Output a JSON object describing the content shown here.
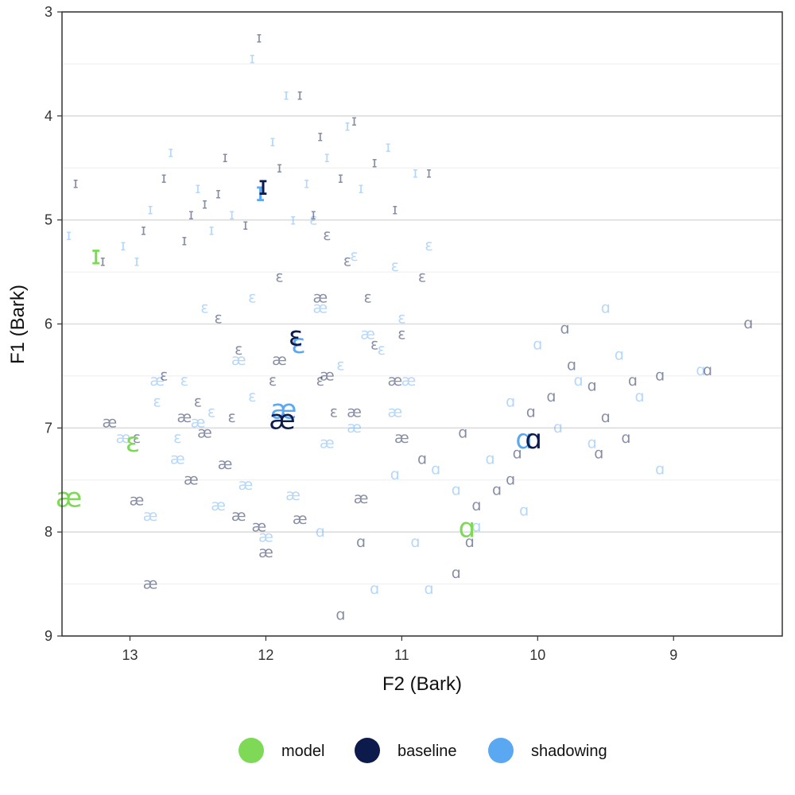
{
  "chart_data": {
    "type": "scatter",
    "xlabel": "F2 (Bark)",
    "ylabel": "F1 (Bark)",
    "xlim": [
      13.5,
      8.2
    ],
    "ylim": [
      3,
      9
    ],
    "x_reversed": true,
    "y_reversed": true,
    "x_ticks": [
      13,
      12,
      11,
      10,
      9
    ],
    "y_ticks": [
      3,
      4,
      5,
      6,
      7,
      8,
      9
    ],
    "grid": true,
    "legend_position": "bottom",
    "legend": [
      {
        "name": "model",
        "color": "#7ed957"
      },
      {
        "name": "baseline",
        "color": "#0d1b4c"
      },
      {
        "name": "shadowing",
        "color": "#5aa7f2"
      }
    ],
    "series": [
      {
        "name": "model",
        "color": "#7ed957",
        "points": [
          {
            "symbol": "ɪ",
            "x": 13.25,
            "y": 5.35
          },
          {
            "symbol": "ɛ",
            "x": 12.98,
            "y": 7.15
          },
          {
            "symbol": "æ",
            "x": 13.45,
            "y": 7.68
          },
          {
            "symbol": "ɑ",
            "x": 10.52,
            "y": 7.97
          }
        ]
      },
      {
        "name": "baseline",
        "color": "#0d1b4c",
        "points": [
          {
            "symbol": "ɪ",
            "x": 12.02,
            "y": 4.68,
            "mean": true
          },
          {
            "symbol": "ɛ",
            "x": 11.78,
            "y": 6.13,
            "mean": true
          },
          {
            "symbol": "æ",
            "x": 11.88,
            "y": 6.93,
            "mean": true
          },
          {
            "symbol": "ɑ",
            "x": 10.03,
            "y": 7.12,
            "mean": true
          },
          {
            "symbol": "ɪ",
            "x": 13.4,
            "y": 4.65
          },
          {
            "symbol": "ɪ",
            "x": 13.2,
            "y": 5.4
          },
          {
            "symbol": "ɪ",
            "x": 12.9,
            "y": 5.1
          },
          {
            "symbol": "ɪ",
            "x": 12.75,
            "y": 4.6
          },
          {
            "symbol": "ɪ",
            "x": 12.6,
            "y": 5.2
          },
          {
            "symbol": "ɪ",
            "x": 12.45,
            "y": 4.85
          },
          {
            "symbol": "ɪ",
            "x": 12.3,
            "y": 4.4
          },
          {
            "symbol": "ɪ",
            "x": 12.15,
            "y": 5.05
          },
          {
            "symbol": "ɪ",
            "x": 12.05,
            "y": 3.25
          },
          {
            "symbol": "ɪ",
            "x": 11.9,
            "y": 4.5
          },
          {
            "symbol": "ɪ",
            "x": 11.75,
            "y": 3.8
          },
          {
            "symbol": "ɪ",
            "x": 11.6,
            "y": 4.2
          },
          {
            "symbol": "ɪ",
            "x": 11.45,
            "y": 4.6
          },
          {
            "symbol": "ɪ",
            "x": 11.35,
            "y": 4.05
          },
          {
            "symbol": "ɪ",
            "x": 11.2,
            "y": 4.45
          },
          {
            "symbol": "ɪ",
            "x": 11.05,
            "y": 4.9
          },
          {
            "symbol": "ɪ",
            "x": 10.8,
            "y": 4.55
          },
          {
            "symbol": "ɪ",
            "x": 12.55,
            "y": 4.95
          },
          {
            "symbol": "ɪ",
            "x": 12.35,
            "y": 4.75
          },
          {
            "symbol": "ɪ",
            "x": 11.65,
            "y": 4.95
          },
          {
            "symbol": "ɛ",
            "x": 12.35,
            "y": 5.95
          },
          {
            "symbol": "ɛ",
            "x": 12.2,
            "y": 6.25
          },
          {
            "symbol": "ɛ",
            "x": 11.9,
            "y": 5.55
          },
          {
            "symbol": "ɛ",
            "x": 11.55,
            "y": 5.15
          },
          {
            "symbol": "ɛ",
            "x": 11.4,
            "y": 5.4
          },
          {
            "symbol": "ɛ",
            "x": 11.25,
            "y": 5.75
          },
          {
            "symbol": "ɛ",
            "x": 11.0,
            "y": 6.1
          },
          {
            "symbol": "ɛ",
            "x": 10.85,
            "y": 5.55
          },
          {
            "symbol": "ɛ",
            "x": 11.6,
            "y": 6.55
          },
          {
            "symbol": "ɛ",
            "x": 12.75,
            "y": 6.5
          },
          {
            "symbol": "ɛ",
            "x": 12.95,
            "y": 7.1
          },
          {
            "symbol": "ɛ",
            "x": 12.5,
            "y": 6.75
          },
          {
            "symbol": "ɛ",
            "x": 12.25,
            "y": 6.9
          },
          {
            "symbol": "ɛ",
            "x": 11.95,
            "y": 6.55
          },
          {
            "symbol": "ɛ",
            "x": 11.5,
            "y": 6.85
          },
          {
            "symbol": "ɛ",
            "x": 11.2,
            "y": 6.2
          },
          {
            "symbol": "æ",
            "x": 13.15,
            "y": 6.95
          },
          {
            "symbol": "æ",
            "x": 12.95,
            "y": 7.7
          },
          {
            "symbol": "æ",
            "x": 12.85,
            "y": 8.5
          },
          {
            "symbol": "æ",
            "x": 12.55,
            "y": 7.5
          },
          {
            "symbol": "æ",
            "x": 12.45,
            "y": 7.05
          },
          {
            "symbol": "æ",
            "x": 12.3,
            "y": 7.35
          },
          {
            "symbol": "æ",
            "x": 12.2,
            "y": 7.85
          },
          {
            "symbol": "æ",
            "x": 12.05,
            "y": 7.95
          },
          {
            "symbol": "æ",
            "x": 12.0,
            "y": 8.2
          },
          {
            "symbol": "æ",
            "x": 11.75,
            "y": 7.88
          },
          {
            "symbol": "æ",
            "x": 11.55,
            "y": 6.5
          },
          {
            "symbol": "æ",
            "x": 11.35,
            "y": 6.85
          },
          {
            "symbol": "æ",
            "x": 11.3,
            "y": 7.68
          },
          {
            "symbol": "æ",
            "x": 11.0,
            "y": 7.1
          },
          {
            "symbol": "æ",
            "x": 11.6,
            "y": 5.75
          },
          {
            "symbol": "æ",
            "x": 11.05,
            "y": 6.55
          },
          {
            "symbol": "æ",
            "x": 12.6,
            "y": 6.9
          },
          {
            "symbol": "æ",
            "x": 11.9,
            "y": 6.35
          },
          {
            "symbol": "ɑ",
            "x": 8.45,
            "y": 6.0
          },
          {
            "symbol": "ɑ",
            "x": 8.75,
            "y": 6.45
          },
          {
            "symbol": "ɑ",
            "x": 9.1,
            "y": 6.5
          },
          {
            "symbol": "ɑ",
            "x": 9.3,
            "y": 6.55
          },
          {
            "symbol": "ɑ",
            "x": 9.5,
            "y": 6.9
          },
          {
            "symbol": "ɑ",
            "x": 9.6,
            "y": 6.6
          },
          {
            "symbol": "ɑ",
            "x": 9.75,
            "y": 6.4
          },
          {
            "symbol": "ɑ",
            "x": 9.9,
            "y": 6.7
          },
          {
            "symbol": "ɑ",
            "x": 10.05,
            "y": 6.85
          },
          {
            "symbol": "ɑ",
            "x": 10.15,
            "y": 7.25
          },
          {
            "symbol": "ɑ",
            "x": 10.3,
            "y": 7.6
          },
          {
            "symbol": "ɑ",
            "x": 10.45,
            "y": 7.75
          },
          {
            "symbol": "ɑ",
            "x": 10.55,
            "y": 7.05
          },
          {
            "symbol": "ɑ",
            "x": 10.6,
            "y": 8.4
          },
          {
            "symbol": "ɑ",
            "x": 10.85,
            "y": 7.3
          },
          {
            "symbol": "ɑ",
            "x": 11.3,
            "y": 8.1
          },
          {
            "symbol": "ɑ",
            "x": 11.45,
            "y": 8.8
          },
          {
            "symbol": "ɑ",
            "x": 10.2,
            "y": 7.5
          },
          {
            "symbol": "ɑ",
            "x": 9.55,
            "y": 7.25
          },
          {
            "symbol": "ɑ",
            "x": 9.8,
            "y": 6.05
          },
          {
            "symbol": "ɑ",
            "x": 10.5,
            "y": 8.1
          },
          {
            "symbol": "ɑ",
            "x": 9.35,
            "y": 7.1
          }
        ]
      },
      {
        "name": "shadowing",
        "color": "#5aa7f2",
        "points": [
          {
            "symbol": "ɪ",
            "x": 12.04,
            "y": 4.74,
            "mean": true
          },
          {
            "symbol": "ɛ",
            "x": 11.76,
            "y": 6.2,
            "mean": true
          },
          {
            "symbol": "æ",
            "x": 11.87,
            "y": 6.83,
            "mean": true
          },
          {
            "symbol": "ɑ",
            "x": 10.1,
            "y": 7.12,
            "mean": true
          },
          {
            "symbol": "ɪ",
            "x": 13.45,
            "y": 5.15
          },
          {
            "symbol": "ɪ",
            "x": 13.05,
            "y": 5.25
          },
          {
            "symbol": "ɪ",
            "x": 12.85,
            "y": 4.9
          },
          {
            "symbol": "ɪ",
            "x": 12.7,
            "y": 4.35
          },
          {
            "symbol": "ɪ",
            "x": 12.5,
            "y": 4.7
          },
          {
            "symbol": "ɪ",
            "x": 12.25,
            "y": 4.95
          },
          {
            "symbol": "ɪ",
            "x": 12.1,
            "y": 3.45
          },
          {
            "symbol": "ɪ",
            "x": 11.95,
            "y": 4.25
          },
          {
            "symbol": "ɪ",
            "x": 11.85,
            "y": 3.8
          },
          {
            "symbol": "ɪ",
            "x": 11.7,
            "y": 4.65
          },
          {
            "symbol": "ɪ",
            "x": 11.55,
            "y": 4.4
          },
          {
            "symbol": "ɪ",
            "x": 11.3,
            "y": 4.7
          },
          {
            "symbol": "ɪ",
            "x": 11.1,
            "y": 4.3
          },
          {
            "symbol": "ɪ",
            "x": 10.9,
            "y": 4.55
          },
          {
            "symbol": "ɪ",
            "x": 12.4,
            "y": 5.1
          },
          {
            "symbol": "ɪ",
            "x": 11.8,
            "y": 5.0
          },
          {
            "symbol": "ɪ",
            "x": 12.95,
            "y": 5.4
          },
          {
            "symbol": "ɪ",
            "x": 11.4,
            "y": 4.1
          },
          {
            "symbol": "ɛ",
            "x": 12.45,
            "y": 5.85
          },
          {
            "symbol": "ɛ",
            "x": 12.1,
            "y": 5.75
          },
          {
            "symbol": "ɛ",
            "x": 11.65,
            "y": 5.0
          },
          {
            "symbol": "ɛ",
            "x": 11.35,
            "y": 5.35
          },
          {
            "symbol": "ɛ",
            "x": 11.05,
            "y": 5.45
          },
          {
            "symbol": "ɛ",
            "x": 10.8,
            "y": 5.25
          },
          {
            "symbol": "ɛ",
            "x": 11.0,
            "y": 5.95
          },
          {
            "symbol": "ɛ",
            "x": 12.8,
            "y": 6.75
          },
          {
            "symbol": "ɛ",
            "x": 12.6,
            "y": 6.55
          },
          {
            "symbol": "ɛ",
            "x": 12.4,
            "y": 6.85
          },
          {
            "symbol": "ɛ",
            "x": 12.1,
            "y": 6.7
          },
          {
            "symbol": "ɛ",
            "x": 11.45,
            "y": 6.4
          },
          {
            "symbol": "ɛ",
            "x": 11.15,
            "y": 6.25
          },
          {
            "symbol": "ɛ",
            "x": 12.65,
            "y": 7.1
          },
          {
            "symbol": "æ",
            "x": 13.05,
            "y": 7.1
          },
          {
            "symbol": "æ",
            "x": 12.85,
            "y": 7.85
          },
          {
            "symbol": "æ",
            "x": 12.65,
            "y": 7.3
          },
          {
            "symbol": "æ",
            "x": 12.5,
            "y": 6.95
          },
          {
            "symbol": "æ",
            "x": 12.35,
            "y": 7.75
          },
          {
            "symbol": "æ",
            "x": 12.15,
            "y": 7.55
          },
          {
            "symbol": "æ",
            "x": 12.0,
            "y": 8.05
          },
          {
            "symbol": "æ",
            "x": 11.8,
            "y": 7.65
          },
          {
            "symbol": "æ",
            "x": 11.55,
            "y": 7.15
          },
          {
            "symbol": "æ",
            "x": 11.6,
            "y": 5.85
          },
          {
            "symbol": "æ",
            "x": 11.25,
            "y": 6.1
          },
          {
            "symbol": "æ",
            "x": 10.95,
            "y": 6.55
          },
          {
            "symbol": "æ",
            "x": 12.2,
            "y": 6.35
          },
          {
            "symbol": "æ",
            "x": 11.35,
            "y": 7.0
          },
          {
            "symbol": "æ",
            "x": 12.8,
            "y": 6.55
          },
          {
            "symbol": "æ",
            "x": 11.05,
            "y": 6.85
          },
          {
            "symbol": "ɑ",
            "x": 8.8,
            "y": 6.45
          },
          {
            "symbol": "ɑ",
            "x": 9.1,
            "y": 7.4
          },
          {
            "symbol": "ɑ",
            "x": 9.25,
            "y": 6.7
          },
          {
            "symbol": "ɑ",
            "x": 9.5,
            "y": 5.85
          },
          {
            "symbol": "ɑ",
            "x": 9.6,
            "y": 7.15
          },
          {
            "symbol": "ɑ",
            "x": 9.7,
            "y": 6.55
          },
          {
            "symbol": "ɑ",
            "x": 9.85,
            "y": 7.0
          },
          {
            "symbol": "ɑ",
            "x": 10.0,
            "y": 6.2
          },
          {
            "symbol": "ɑ",
            "x": 10.2,
            "y": 6.75
          },
          {
            "symbol": "ɑ",
            "x": 10.35,
            "y": 7.3
          },
          {
            "symbol": "ɑ",
            "x": 10.6,
            "y": 7.6
          },
          {
            "symbol": "ɑ",
            "x": 10.75,
            "y": 7.4
          },
          {
            "symbol": "ɑ",
            "x": 10.9,
            "y": 8.1
          },
          {
            "symbol": "ɑ",
            "x": 11.05,
            "y": 7.45
          },
          {
            "symbol": "ɑ",
            "x": 11.2,
            "y": 8.55
          },
          {
            "symbol": "ɑ",
            "x": 10.8,
            "y": 8.55
          },
          {
            "symbol": "ɑ",
            "x": 11.6,
            "y": 8.0
          },
          {
            "symbol": "ɑ",
            "x": 10.1,
            "y": 7.8
          },
          {
            "symbol": "ɑ",
            "x": 10.45,
            "y": 7.95
          },
          {
            "symbol": "ɑ",
            "x": 9.4,
            "y": 6.3
          }
        ]
      }
    ]
  }
}
